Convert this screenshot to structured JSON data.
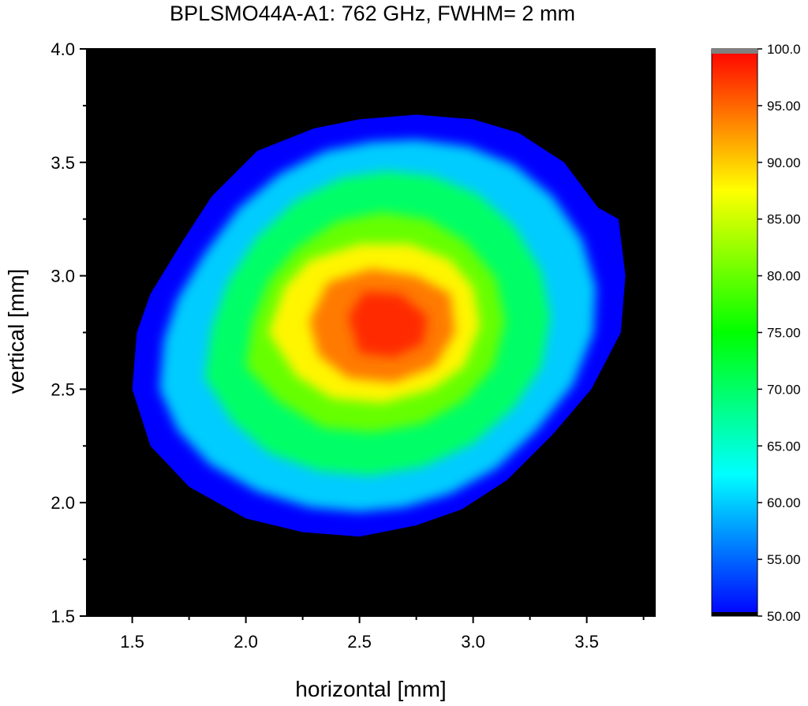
{
  "chart_data": {
    "type": "heatmap",
    "title": "BPLSMO44A-A1:  762 GHz, FWHM= 2 mm",
    "xlabel": "horizontal [mm]",
    "ylabel": "vertical [mm]",
    "xlim": [
      1.3,
      3.8
    ],
    "ylim": [
      1.5,
      4.0
    ],
    "xticks": [
      "1.5",
      "2.0",
      "2.5",
      "3.0",
      "3.5"
    ],
    "yticks": [
      "1.5",
      "2.0",
      "2.5",
      "3.0",
      "3.5",
      "4.0"
    ],
    "background_color": "#000000",
    "colorbar": {
      "range": [
        50.0,
        100.0
      ],
      "ticks": [
        "50.00",
        "55.00",
        "60.00",
        "65.00",
        "70.00",
        "75.00",
        "80.00",
        "85.00",
        "90.00",
        "95.00",
        "100.0"
      ],
      "colors": [
        "#0000ff",
        "#00ffff",
        "#00ff00",
        "#ffff00",
        "#ff0000"
      ],
      "over_color": "#808080",
      "under_color": "#000000"
    },
    "contours": [
      {
        "level": 50,
        "points": [
          [
            1.5,
            2.5
          ],
          [
            1.52,
            2.75
          ],
          [
            1.58,
            2.92
          ],
          [
            1.72,
            3.15
          ],
          [
            1.85,
            3.35
          ],
          [
            2.05,
            3.55
          ],
          [
            2.3,
            3.65
          ],
          [
            2.5,
            3.69
          ],
          [
            2.75,
            3.71
          ],
          [
            3.0,
            3.69
          ],
          [
            3.2,
            3.63
          ],
          [
            3.4,
            3.5
          ],
          [
            3.55,
            3.3
          ],
          [
            3.64,
            3.25
          ],
          [
            3.67,
            3.0
          ],
          [
            3.65,
            2.75
          ],
          [
            3.52,
            2.5
          ],
          [
            3.35,
            2.3
          ],
          [
            3.15,
            2.1
          ],
          [
            2.95,
            1.97
          ],
          [
            2.75,
            1.9
          ],
          [
            2.5,
            1.85
          ],
          [
            2.25,
            1.87
          ],
          [
            2.0,
            1.93
          ],
          [
            1.75,
            2.07
          ],
          [
            1.58,
            2.25
          ]
        ]
      },
      {
        "level": 60,
        "points": [
          [
            1.62,
            2.5
          ],
          [
            1.64,
            2.72
          ],
          [
            1.7,
            2.9
          ],
          [
            1.82,
            3.1
          ],
          [
            1.97,
            3.3
          ],
          [
            2.15,
            3.45
          ],
          [
            2.35,
            3.55
          ],
          [
            2.55,
            3.59
          ],
          [
            2.75,
            3.6
          ],
          [
            2.98,
            3.57
          ],
          [
            3.18,
            3.49
          ],
          [
            3.35,
            3.35
          ],
          [
            3.48,
            3.16
          ],
          [
            3.54,
            2.95
          ],
          [
            3.53,
            2.75
          ],
          [
            3.44,
            2.52
          ],
          [
            3.28,
            2.32
          ],
          [
            3.1,
            2.15
          ],
          [
            2.9,
            2.04
          ],
          [
            2.7,
            1.98
          ],
          [
            2.5,
            1.96
          ],
          [
            2.28,
            1.98
          ],
          [
            2.05,
            2.05
          ],
          [
            1.84,
            2.17
          ],
          [
            1.7,
            2.32
          ]
        ]
      },
      {
        "level": 70,
        "points": [
          [
            1.82,
            2.55
          ],
          [
            1.85,
            2.77
          ],
          [
            1.92,
            2.97
          ],
          [
            2.05,
            3.17
          ],
          [
            2.22,
            3.33
          ],
          [
            2.42,
            3.43
          ],
          [
            2.62,
            3.46
          ],
          [
            2.82,
            3.44
          ],
          [
            3.02,
            3.36
          ],
          [
            3.18,
            3.22
          ],
          [
            3.3,
            3.02
          ],
          [
            3.34,
            2.82
          ],
          [
            3.3,
            2.6
          ],
          [
            3.18,
            2.42
          ],
          [
            3.0,
            2.26
          ],
          [
            2.78,
            2.16
          ],
          [
            2.55,
            2.12
          ],
          [
            2.32,
            2.14
          ],
          [
            2.1,
            2.22
          ],
          [
            1.94,
            2.36
          ]
        ]
      },
      {
        "level": 80,
        "points": [
          [
            2.0,
            2.6
          ],
          [
            2.03,
            2.8
          ],
          [
            2.1,
            2.98
          ],
          [
            2.22,
            3.12
          ],
          [
            2.4,
            3.24
          ],
          [
            2.6,
            3.28
          ],
          [
            2.8,
            3.25
          ],
          [
            2.97,
            3.15
          ],
          [
            3.1,
            2.99
          ],
          [
            3.14,
            2.8
          ],
          [
            3.09,
            2.6
          ],
          [
            2.96,
            2.45
          ],
          [
            2.78,
            2.35
          ],
          [
            2.56,
            2.31
          ],
          [
            2.34,
            2.33
          ],
          [
            2.14,
            2.45
          ]
        ]
      },
      {
        "level": 88,
        "points": [
          [
            2.1,
            2.75
          ],
          [
            2.17,
            2.95
          ],
          [
            2.28,
            3.07
          ],
          [
            2.5,
            3.14
          ],
          [
            2.72,
            3.14
          ],
          [
            2.9,
            3.07
          ],
          [
            3.0,
            2.95
          ],
          [
            3.03,
            2.78
          ],
          [
            2.96,
            2.6
          ],
          [
            2.82,
            2.5
          ],
          [
            2.6,
            2.44
          ],
          [
            2.38,
            2.46
          ],
          [
            2.22,
            2.56
          ]
        ]
      },
      {
        "level": 94,
        "points": [
          [
            2.28,
            2.8
          ],
          [
            2.36,
            2.97
          ],
          [
            2.55,
            3.03
          ],
          [
            2.75,
            3.0
          ],
          [
            2.9,
            2.92
          ],
          [
            2.92,
            2.75
          ],
          [
            2.83,
            2.6
          ],
          [
            2.65,
            2.53
          ],
          [
            2.45,
            2.55
          ],
          [
            2.32,
            2.65
          ]
        ]
      },
      {
        "level": 98,
        "points": [
          [
            2.45,
            2.82
          ],
          [
            2.52,
            2.93
          ],
          [
            2.68,
            2.92
          ],
          [
            2.8,
            2.82
          ],
          [
            2.78,
            2.7
          ],
          [
            2.65,
            2.64
          ],
          [
            2.5,
            2.66
          ]
        ]
      }
    ]
  }
}
